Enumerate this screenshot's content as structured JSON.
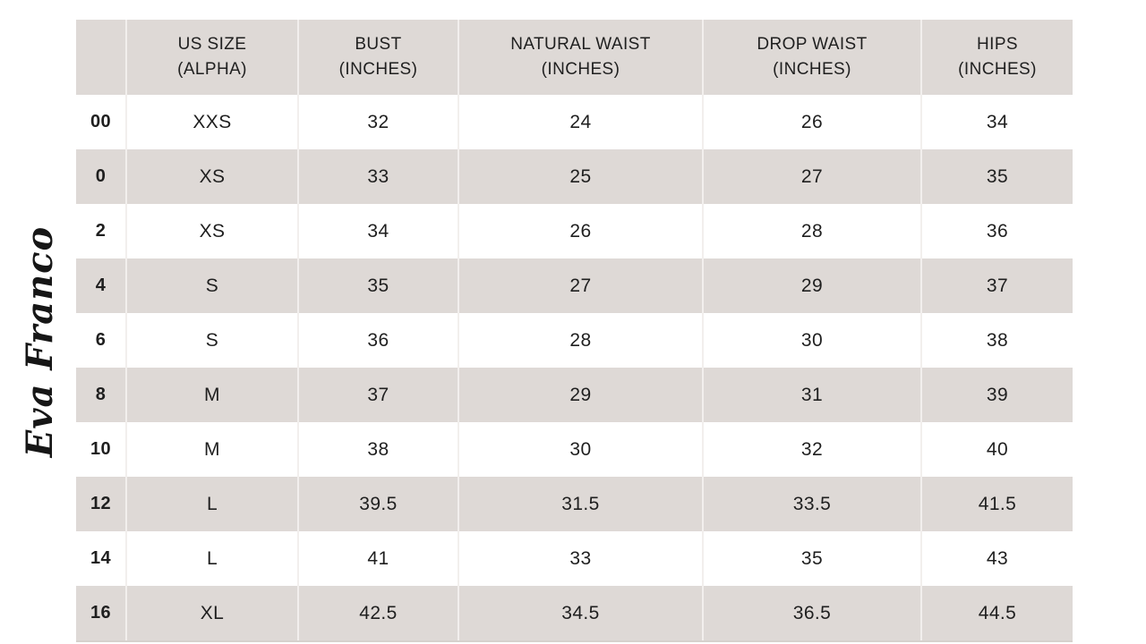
{
  "signature_text": "Eva Franco",
  "colors": {
    "header_bg": "#ded9d6",
    "row_alt_bg": "#ded9d6",
    "row_bg": "#ffffff",
    "text": "#1f1f1f",
    "separator": "#f2efed",
    "background": "#ffffff"
  },
  "chart_data": {
    "type": "table",
    "columns": [
      "",
      "US SIZE\n(ALPHA)",
      "BUST\n(INCHES)",
      "NATURAL WAIST\n(INCHES)",
      "DROP WAIST\n(INCHES)",
      "HIPS\n(INCHES)"
    ],
    "rows": [
      [
        "00",
        "XXS",
        "32",
        "24",
        "26",
        "34"
      ],
      [
        "0",
        "XS",
        "33",
        "25",
        "27",
        "35"
      ],
      [
        "2",
        "XS",
        "34",
        "26",
        "28",
        "36"
      ],
      [
        "4",
        "S",
        "35",
        "27",
        "29",
        "37"
      ],
      [
        "6",
        "S",
        "36",
        "28",
        "30",
        "38"
      ],
      [
        "8",
        "M",
        "37",
        "29",
        "31",
        "39"
      ],
      [
        "10",
        "M",
        "38",
        "30",
        "32",
        "40"
      ],
      [
        "12",
        "L",
        "39.5",
        "31.5",
        "33.5",
        "41.5"
      ],
      [
        "14",
        "L",
        "41",
        "33",
        "35",
        "43"
      ],
      [
        "16",
        "XL",
        "42.5",
        "34.5",
        "36.5",
        "44.5"
      ]
    ]
  }
}
